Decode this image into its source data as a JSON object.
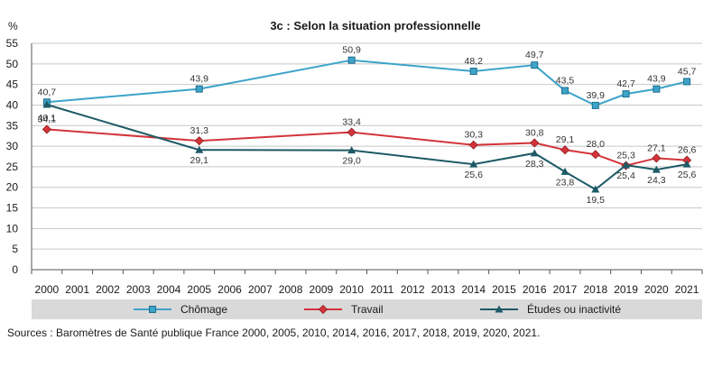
{
  "chart_data": {
    "type": "line",
    "title": "3c : Selon la situation professionnelle",
    "ylabel": "%",
    "xlabel": "",
    "ylim": [
      0,
      55
    ],
    "yticks": [
      "0",
      "5",
      "10",
      "15",
      "20",
      "25",
      "30",
      "35",
      "40",
      "45",
      "50",
      "55"
    ],
    "categories": [
      "2000",
      "2001",
      "2002",
      "2003",
      "2004",
      "2005",
      "2006",
      "2007",
      "2008",
      "2009",
      "2010",
      "2011",
      "2012",
      "2013",
      "2014",
      "2015",
      "2016",
      "2017",
      "2018",
      "2019",
      "2020",
      "2021"
    ],
    "grid": true,
    "legend_position": "bottom",
    "series": [
      {
        "name": "Chômage",
        "color": "#3da3c9",
        "marker": "square",
        "points": [
          {
            "x": "2000",
            "y": 40.7,
            "label": "40,7"
          },
          {
            "x": "2005",
            "y": 43.9,
            "label": "43,9"
          },
          {
            "x": "2010",
            "y": 50.9,
            "label": "50,9"
          },
          {
            "x": "2014",
            "y": 48.2,
            "label": "48,2"
          },
          {
            "x": "2016",
            "y": 49.7,
            "label": "49,7"
          },
          {
            "x": "2017",
            "y": 43.5,
            "label": "43,5"
          },
          {
            "x": "2018",
            "y": 39.9,
            "label": "39,9"
          },
          {
            "x": "2019",
            "y": 42.7,
            "label": "42,7"
          },
          {
            "x": "2020",
            "y": 43.9,
            "label": "43,9"
          },
          {
            "x": "2021",
            "y": 45.7,
            "label": "45,7"
          }
        ]
      },
      {
        "name": "Travail",
        "color": "#d3343a",
        "marker": "diamond",
        "points": [
          {
            "x": "2000",
            "y": 34.1,
            "label": "34,1"
          },
          {
            "x": "2005",
            "y": 31.3,
            "label": "31,3"
          },
          {
            "x": "2010",
            "y": 33.4,
            "label": "33,4"
          },
          {
            "x": "2014",
            "y": 30.3,
            "label": "30,3"
          },
          {
            "x": "2016",
            "y": 30.8,
            "label": "30,8"
          },
          {
            "x": "2017",
            "y": 29.1,
            "label": "29,1"
          },
          {
            "x": "2018",
            "y": 28.0,
            "label": "28,0"
          },
          {
            "x": "2019",
            "y": 25.3,
            "label": "25,3"
          },
          {
            "x": "2020",
            "y": 27.1,
            "label": "27,1"
          },
          {
            "x": "2021",
            "y": 26.6,
            "label": "26,6"
          }
        ]
      },
      {
        "name": "Études ou inactivité",
        "color": "#1d5a66",
        "marker": "triangle",
        "points": [
          {
            "x": "2000",
            "y": 40.1,
            "label": "40,1"
          },
          {
            "x": "2005",
            "y": 29.1,
            "label": "29,1"
          },
          {
            "x": "2010",
            "y": 29.0,
            "label": "29,0"
          },
          {
            "x": "2014",
            "y": 25.6,
            "label": "25,6"
          },
          {
            "x": "2016",
            "y": 28.3,
            "label": "28,3"
          },
          {
            "x": "2017",
            "y": 23.8,
            "label": "23,8"
          },
          {
            "x": "2018",
            "y": 19.5,
            "label": "19,5"
          },
          {
            "x": "2019",
            "y": 25.4,
            "label": "25,4"
          },
          {
            "x": "2020",
            "y": 24.3,
            "label": "24,3"
          },
          {
            "x": "2021",
            "y": 25.6,
            "label": "25,6"
          }
        ]
      }
    ]
  },
  "source_note": "Sources : Baromètres de Santé publique France 2000, 2005, 2010, 2014, 2016, 2017, 2018, 2019, 2020, 2021."
}
